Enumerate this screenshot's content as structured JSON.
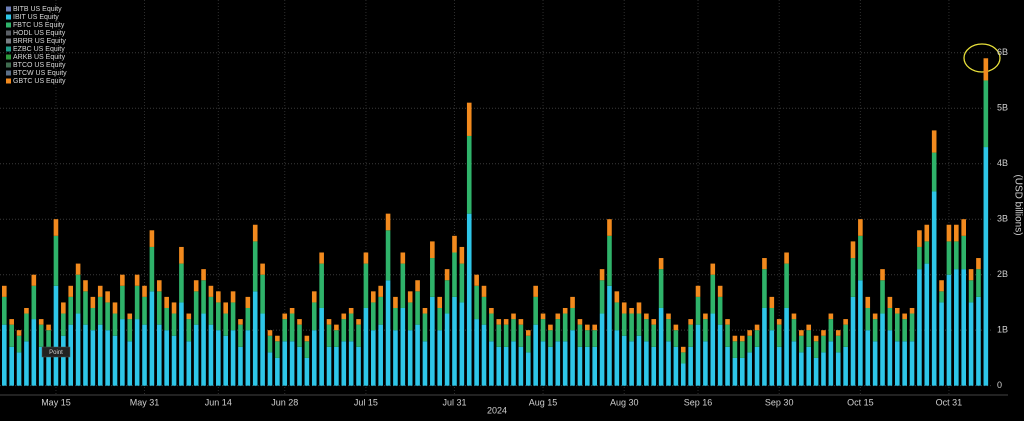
{
  "chart_data": {
    "type": "bar",
    "stacked": true,
    "y_label": "(USD billions)",
    "x_label": "2024",
    "tooltip": "Point",
    "ylim": [
      -0.15,
      6.95
    ],
    "yticks": [
      {
        "value": 0,
        "label": "0"
      },
      {
        "value": 1,
        "label": "1B"
      },
      {
        "value": 2,
        "label": "2B"
      },
      {
        "value": 3,
        "label": "3B"
      },
      {
        "value": 4,
        "label": "4B"
      },
      {
        "value": 5,
        "label": "5B"
      },
      {
        "value": 6,
        "label": "6B"
      }
    ],
    "grid": true,
    "legend": "top-left",
    "categories": [
      null,
      null,
      null,
      null,
      null,
      null,
      null,
      "May 15",
      null,
      null,
      null,
      null,
      null,
      null,
      null,
      null,
      null,
      null,
      null,
      "May 31",
      null,
      null,
      null,
      null,
      null,
      null,
      null,
      null,
      null,
      "Jun 14",
      null,
      null,
      null,
      null,
      null,
      null,
      null,
      null,
      "Jun 28",
      null,
      null,
      null,
      null,
      null,
      null,
      null,
      null,
      null,
      null,
      "Jul 15",
      null,
      null,
      null,
      null,
      null,
      null,
      null,
      null,
      null,
      null,
      null,
      "Jul 31",
      null,
      null,
      null,
      null,
      null,
      null,
      null,
      null,
      null,
      null,
      null,
      "Aug 15",
      null,
      null,
      null,
      null,
      null,
      null,
      null,
      null,
      null,
      null,
      "Aug 30",
      null,
      null,
      null,
      null,
      null,
      null,
      null,
      null,
      null,
      "Sep 16",
      null,
      null,
      null,
      null,
      null,
      null,
      null,
      null,
      null,
      null,
      "Sep 30",
      null,
      null,
      null,
      null,
      null,
      null,
      null,
      null,
      null,
      null,
      "Oct 15",
      null,
      null,
      null,
      null,
      null,
      null,
      null,
      null,
      null,
      null,
      null,
      "Oct 31",
      null,
      null,
      null,
      null,
      null
    ],
    "series": [
      {
        "name": "BITB US Equity",
        "color": "#6d7fb8"
      },
      {
        "name": "IBIT US Equity",
        "color": "#2ec6e8",
        "values": [
          1.1,
          0.7,
          0.6,
          0.8,
          1.2,
          0.7,
          0.7,
          1.8,
          0.9,
          1.1,
          1.3,
          1.1,
          1.0,
          1.1,
          1.0,
          0.9,
          1.2,
          0.8,
          1.2,
          1.1,
          1.7,
          1.1,
          1.0,
          0.9,
          1.5,
          0.8,
          1.1,
          1.3,
          1.1,
          1.0,
          0.9,
          1.0,
          0.7,
          1.0,
          1.7,
          1.3,
          0.6,
          0.5,
          0.8,
          0.8,
          0.7,
          0.5,
          1.0,
          1.4,
          0.7,
          0.7,
          0.8,
          0.8,
          0.7,
          1.4,
          1.0,
          1.1,
          1.9,
          1.0,
          1.4,
          1.0,
          1.1,
          0.8,
          1.6,
          1.0,
          1.3,
          1.6,
          1.5,
          3.1,
          1.2,
          1.1,
          0.8,
          0.7,
          0.7,
          0.8,
          0.7,
          0.6,
          1.1,
          0.8,
          0.7,
          0.8,
          0.8,
          1.0,
          0.7,
          0.7,
          0.7,
          1.3,
          1.8,
          1.0,
          0.9,
          0.8,
          0.9,
          0.8,
          0.7,
          1.4,
          0.8,
          0.7,
          0.4,
          0.7,
          1.1,
          0.8,
          1.3,
          1.1,
          0.7,
          0.5,
          0.5,
          0.6,
          0.7,
          1.4,
          1.0,
          0.7,
          1.4,
          0.8,
          0.6,
          0.7,
          0.5,
          0.6,
          0.8,
          0.6,
          0.7,
          1.6,
          1.9,
          1.0,
          0.8,
          1.3,
          1.0,
          0.8,
          0.8,
          0.8,
          2.1,
          2.2,
          3.5,
          1.5,
          2.0,
          2.1,
          2.1,
          1.5,
          1.6,
          4.3
        ]
      },
      {
        "name": "FBTC US Equity",
        "color": "#2fb36a",
        "values": [
          0.5,
          0.4,
          0.3,
          0.5,
          0.6,
          0.4,
          0.3,
          0.9,
          0.4,
          0.5,
          0.7,
          0.6,
          0.4,
          0.5,
          0.5,
          0.4,
          0.6,
          0.4,
          0.6,
          0.5,
          0.8,
          0.6,
          0.4,
          0.4,
          0.7,
          0.4,
          0.6,
          0.6,
          0.5,
          0.5,
          0.4,
          0.5,
          0.4,
          0.4,
          0.9,
          0.7,
          0.3,
          0.3,
          0.4,
          0.5,
          0.4,
          0.3,
          0.5,
          0.8,
          0.4,
          0.3,
          0.4,
          0.5,
          0.4,
          0.8,
          0.5,
          0.5,
          0.9,
          0.4,
          0.8,
          0.5,
          0.6,
          0.5,
          0.7,
          0.4,
          0.6,
          0.8,
          0.7,
          1.4,
          0.6,
          0.5,
          0.5,
          0.4,
          0.4,
          0.4,
          0.4,
          0.3,
          0.5,
          0.4,
          0.3,
          0.4,
          0.5,
          0.4,
          0.4,
          0.3,
          0.3,
          0.6,
          0.9,
          0.5,
          0.4,
          0.5,
          0.4,
          0.4,
          0.4,
          0.7,
          0.4,
          0.3,
          0.2,
          0.4,
          0.5,
          0.4,
          0.7,
          0.5,
          0.4,
          0.3,
          0.3,
          0.3,
          0.3,
          0.7,
          0.4,
          0.4,
          0.8,
          0.4,
          0.3,
          0.3,
          0.3,
          0.3,
          0.4,
          0.3,
          0.4,
          0.7,
          0.8,
          0.4,
          0.4,
          0.6,
          0.4,
          0.5,
          0.4,
          0.5,
          0.4,
          0.4,
          0.7,
          0.2,
          0.6,
          0.5,
          0.6,
          0.4,
          0.5,
          1.2
        ]
      },
      {
        "name": "HODL US Equity",
        "color": "#5a5f66"
      },
      {
        "name": "BRRR US Equity",
        "color": "#7a7f86"
      },
      {
        "name": "EZBC US Equity",
        "color": "#1f9c88"
      },
      {
        "name": "ARKB US Equity",
        "color": "#2e9a3c"
      },
      {
        "name": "BTCO US Equity",
        "color": "#3f6b4f"
      },
      {
        "name": "BTCW US Equity",
        "color": "#5b6f87"
      },
      {
        "name": "GBTC US Equity",
        "color": "#f28a1e",
        "values": [
          0.2,
          0.1,
          0.1,
          0.1,
          0.2,
          0.1,
          0.1,
          0.3,
          0.2,
          0.2,
          0.2,
          0.2,
          0.2,
          0.2,
          0.2,
          0.2,
          0.2,
          0.1,
          0.2,
          0.2,
          0.3,
          0.2,
          0.2,
          0.2,
          0.3,
          0.1,
          0.2,
          0.2,
          0.2,
          0.2,
          0.2,
          0.2,
          0.1,
          0.2,
          0.3,
          0.2,
          0.1,
          0.1,
          0.1,
          0.1,
          0.1,
          0.1,
          0.2,
          0.2,
          0.1,
          0.1,
          0.1,
          0.1,
          0.1,
          0.2,
          0.2,
          0.2,
          0.3,
          0.2,
          0.2,
          0.2,
          0.2,
          0.1,
          0.3,
          0.2,
          0.2,
          0.3,
          0.3,
          0.6,
          0.2,
          0.2,
          0.1,
          0.1,
          0.1,
          0.1,
          0.1,
          0.1,
          0.2,
          0.1,
          0.1,
          0.1,
          0.1,
          0.2,
          0.1,
          0.1,
          0.1,
          0.2,
          0.3,
          0.2,
          0.2,
          0.1,
          0.2,
          0.1,
          0.1,
          0.2,
          0.1,
          0.1,
          0.1,
          0.1,
          0.2,
          0.1,
          0.2,
          0.2,
          0.1,
          0.1,
          0.1,
          0.1,
          0.1,
          0.2,
          0.2,
          0.1,
          0.2,
          0.1,
          0.1,
          0.1,
          0.1,
          0.1,
          0.1,
          0.1,
          0.1,
          0.3,
          0.3,
          0.2,
          0.1,
          0.2,
          0.2,
          0.1,
          0.1,
          0.1,
          0.3,
          0.3,
          0.4,
          0.2,
          0.3,
          0.3,
          0.3,
          0.2,
          0.2,
          0.4
        ]
      }
    ]
  }
}
